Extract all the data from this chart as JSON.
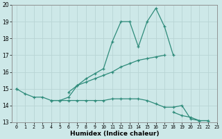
{
  "xlabel": "Humidex (Indice chaleur)",
  "x": [
    0,
    1,
    2,
    3,
    4,
    5,
    6,
    7,
    8,
    9,
    10,
    11,
    12,
    13,
    14,
    15,
    16,
    17,
    18,
    19,
    20,
    21,
    22,
    23
  ],
  "line1": [
    15.0,
    14.7,
    14.5,
    14.5,
    14.3,
    14.3,
    14.5,
    15.2,
    15.6,
    15.9,
    16.2,
    17.8,
    19.0,
    19.0,
    17.5,
    19.0,
    19.8,
    18.7,
    17.0,
    null,
    null,
    null,
    null,
    null
  ],
  "line2": [
    15.0,
    null,
    null,
    null,
    null,
    null,
    14.8,
    15.2,
    15.4,
    15.6,
    15.8,
    16.0,
    16.3,
    16.5,
    16.7,
    16.8,
    16.9,
    17.0,
    null,
    null,
    null,
    null,
    null,
    null
  ],
  "line3": [
    null,
    null,
    null,
    null,
    14.3,
    14.3,
    14.3,
    14.3,
    14.3,
    14.3,
    14.3,
    14.4,
    14.4,
    14.4,
    14.4,
    14.3,
    14.1,
    13.9,
    13.9,
    14.0,
    13.2,
    13.1,
    13.1,
    null
  ],
  "line3b": [
    null,
    null,
    null,
    null,
    null,
    null,
    null,
    null,
    null,
    null,
    null,
    null,
    null,
    null,
    null,
    null,
    null,
    null,
    13.6,
    13.4,
    13.3,
    13.1,
    13.1,
    null
  ],
  "color": "#2e8b7a",
  "bg_color": "#cde8e8",
  "grid_color": "#b8d4d4",
  "ylim": [
    13,
    20
  ],
  "xlim": [
    -0.5,
    23
  ]
}
